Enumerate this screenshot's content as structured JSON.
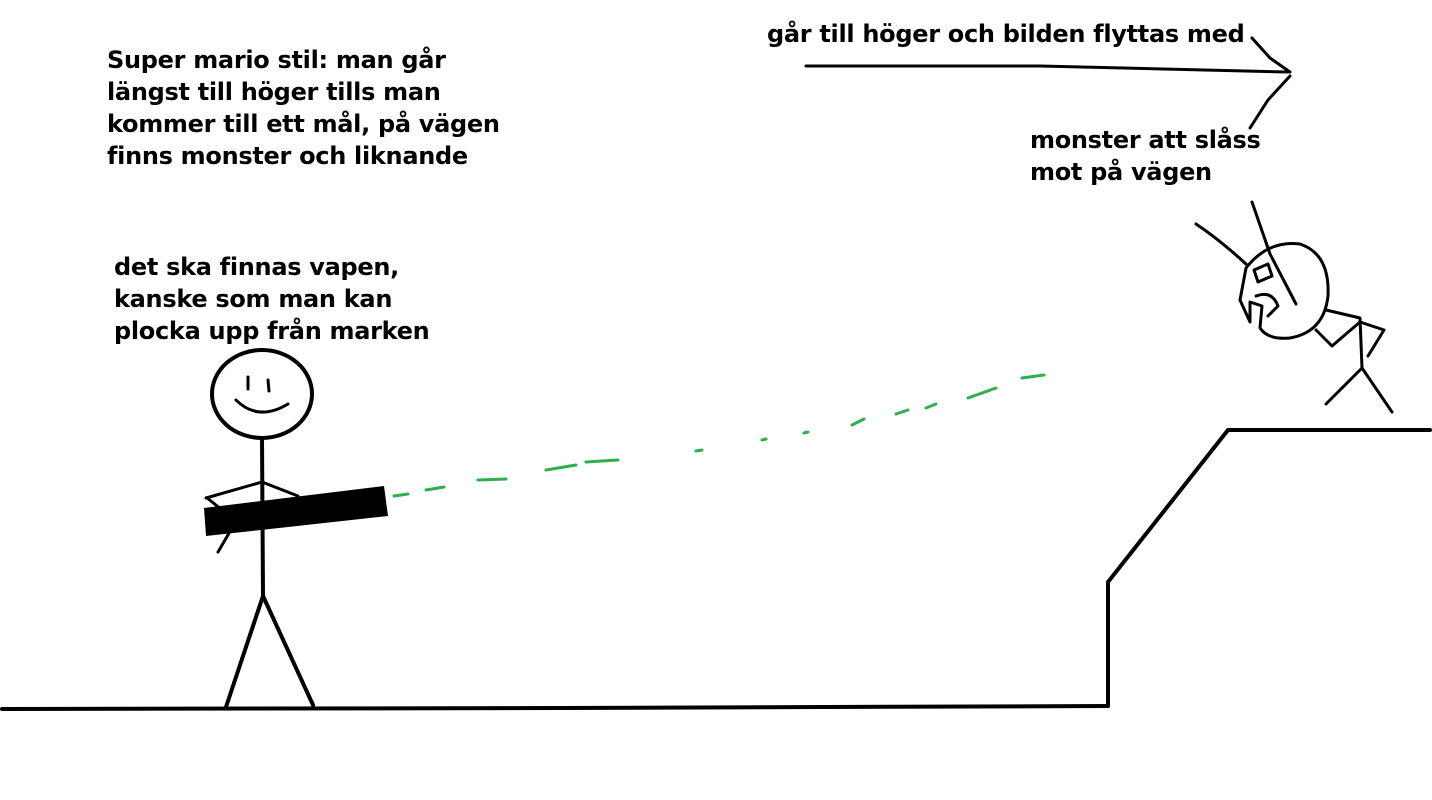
{
  "annotations": {
    "game_style": {
      "lines": [
        "Super mario stil: man går",
        "längst till höger tills man",
        "kommer till ett mål, på vägen",
        "finns monster och liknande"
      ]
    },
    "weapons": {
      "lines": [
        "det ska finnas vapen,",
        "kanske som man kan",
        "plocka upp från marken"
      ]
    },
    "scroll_direction": {
      "text": "går till höger och bilden flyttas med"
    },
    "monster": {
      "lines": [
        "monster att slåss",
        "mot på vägen"
      ]
    }
  },
  "colors": {
    "ink": "#000000",
    "laser": "#2db04b",
    "background": "#ffffff"
  },
  "icons": [
    "stick-figure-player",
    "gun",
    "laser-beam",
    "monster",
    "right-arrow",
    "ground-line",
    "raised-ledge"
  ]
}
